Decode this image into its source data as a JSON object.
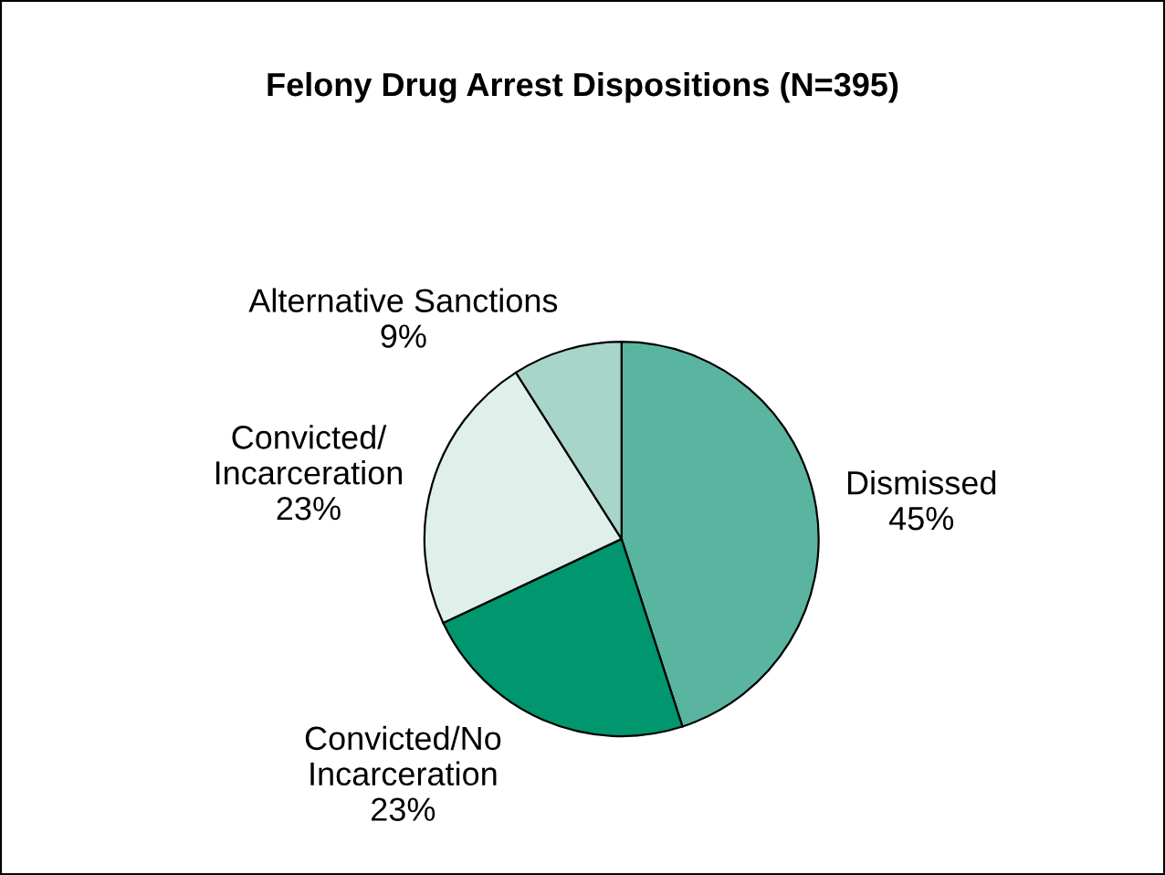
{
  "chart_data": {
    "type": "pie",
    "title": "Felony Drug Arrest Dispositions (N=395)",
    "categories": [
      "Dismissed",
      "Convicted/No\nIncarceration",
      "Convicted/\nIncarceration",
      "Alternative Sanctions"
    ],
    "values": [
      45,
      23,
      23,
      9
    ],
    "value_labels": [
      "45%",
      "23%",
      "23%",
      "9%"
    ],
    "colors": [
      "#5ab5a0",
      "#00966e",
      "#dff0ea",
      "#a8d5c9"
    ]
  }
}
